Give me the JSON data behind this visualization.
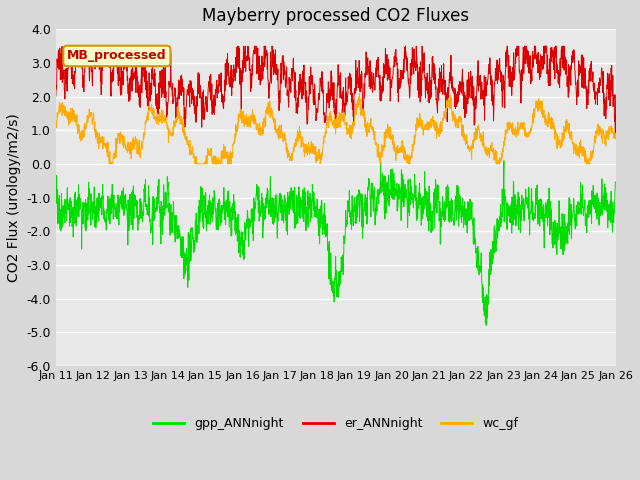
{
  "title": "Mayberry processed CO2 Fluxes",
  "ylabel": "CO2 Flux (urology/m2/s)",
  "xlim_days": [
    0,
    15
  ],
  "ylim": [
    -6.0,
    4.0
  ],
  "yticks": [
    4.0,
    3.0,
    2.0,
    1.0,
    0.0,
    -1.0,
    -2.0,
    -3.0,
    -4.0,
    -5.0,
    -6.0
  ],
  "date_labels": [
    "Jan 11",
    "Jan 12",
    "Jan 13",
    "Jan 14",
    "Jan 15",
    "Jan 16",
    "Jan 17",
    "Jan 18",
    "Jan 19",
    "Jan 20",
    "Jan 21",
    "Jan 22",
    "Jan 23",
    "Jan 24",
    "Jan 25",
    "Jan 26"
  ],
  "n_points": 2000,
  "color_gpp": "#00dd00",
  "color_er": "#dd0000",
  "color_wc": "#ffaa00",
  "legend_labels": [
    "gpp_ANNnight",
    "er_ANNnight",
    "wc_gf"
  ],
  "inset_label": "MB_processed",
  "inset_color_text": "#cc0000",
  "inset_color_bg": "#ffffcc",
  "inset_color_border": "#cc9900",
  "title_fontsize": 12,
  "axis_fontsize": 10,
  "tick_fontsize": 9,
  "linewidth": 0.7
}
